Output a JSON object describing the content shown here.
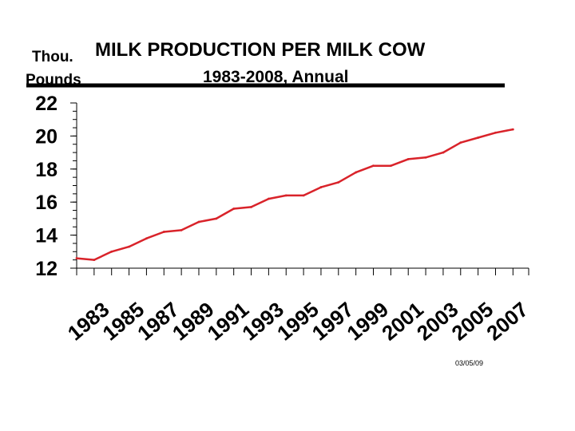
{
  "header": {
    "units_line1": "Thou.",
    "units_line2": "Pounds",
    "title": "MILK  PRODUCTION  PER  MILK  COW",
    "subtitle": "1983-2008, Annual"
  },
  "footer": {
    "date": "03/05/09"
  },
  "colors": {
    "series": "#d9232a",
    "text": "#000000",
    "axis": "#000000",
    "rule": "#000000"
  },
  "chart_data": {
    "type": "line",
    "title": "MILK  PRODUCTION  PER  MILK  COW",
    "subtitle": "1983-2008, Annual",
    "ylabel": "Thou. Pounds",
    "xlabel": "",
    "ylim": [
      12,
      22
    ],
    "yticks": [
      12,
      14,
      16,
      18,
      20,
      22
    ],
    "y_minor_step": 0.5,
    "grid": false,
    "x_tick_labels": [
      "1983",
      "1985",
      "1987",
      "1989",
      "1991",
      "1993",
      "1995",
      "1997",
      "1999",
      "2001",
      "2003",
      "2005",
      "2007"
    ],
    "series": [
      {
        "name": "Milk production per milk cow",
        "x": [
          1983,
          1984,
          1985,
          1986,
          1987,
          1988,
          1989,
          1990,
          1991,
          1992,
          1993,
          1994,
          1995,
          1996,
          1997,
          1998,
          1999,
          2000,
          2001,
          2002,
          2003,
          2004,
          2005,
          2006,
          2007,
          2008
        ],
        "values": [
          12.6,
          12.5,
          13.0,
          13.3,
          13.8,
          14.2,
          14.3,
          14.8,
          15.0,
          15.6,
          15.7,
          16.2,
          16.4,
          16.4,
          16.9,
          17.2,
          17.8,
          18.2,
          18.2,
          18.6,
          18.7,
          19.0,
          19.6,
          19.9,
          20.2,
          20.4
        ]
      }
    ]
  }
}
